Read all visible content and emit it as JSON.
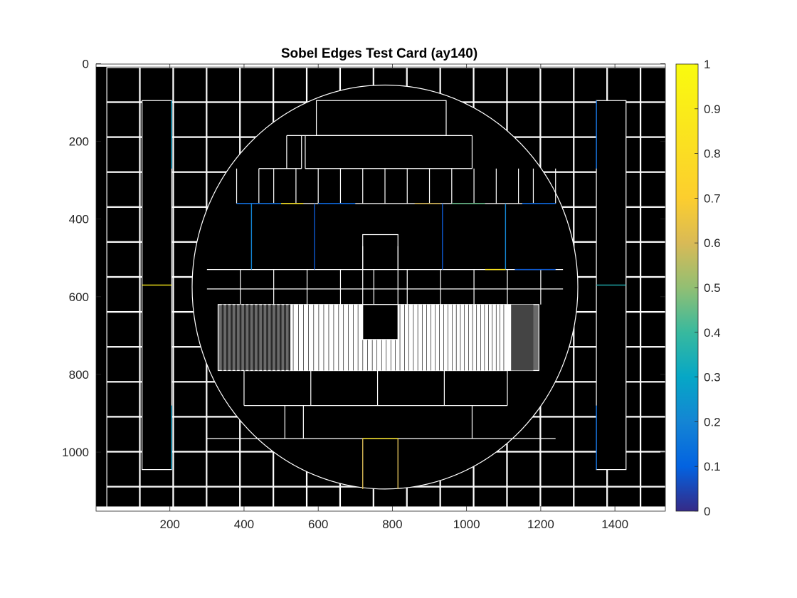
{
  "chart_data": {
    "type": "heatmap",
    "title": "Sobel Edges Test Card (ay140)",
    "xlabel": "",
    "ylabel": "",
    "image_size": {
      "columns": 1536,
      "rows": 1152
    },
    "xlim": [
      1,
      1536
    ],
    "ylim": [
      1152,
      1
    ],
    "y_direction": "reverse",
    "x_ticks": [
      200,
      400,
      600,
      800,
      1000,
      1200,
      1400
    ],
    "x_tick_labels": [
      "200",
      "400",
      "600",
      "800",
      "1000",
      "1200",
      "1400"
    ],
    "y_ticks": [
      0,
      200,
      400,
      600,
      800,
      1000
    ],
    "y_tick_labels": [
      "0",
      "200",
      "400",
      "600",
      "800",
      "1000"
    ],
    "colorbar": {
      "colormap": "parula",
      "limits": [
        0,
        1
      ],
      "ticks": [
        0,
        0.1,
        0.2,
        0.3,
        0.4,
        0.5,
        0.6,
        0.7,
        0.8,
        0.9,
        1
      ],
      "tick_labels": [
        "0",
        "0.1",
        "0.2",
        "0.3",
        "0.4",
        "0.5",
        "0.6",
        "0.7",
        "0.8",
        "0.9",
        "1"
      ]
    },
    "background_value": 0,
    "edge_value": 1,
    "grid": false,
    "circle": {
      "cx": 780,
      "cy": 575,
      "r": 520
    },
    "grid_columns_x": [
      30,
      120,
      210,
      300,
      390,
      480,
      570,
      660,
      750,
      840,
      930,
      1020,
      1110,
      1200,
      1290,
      1380,
      1470
    ],
    "grid_rows_y": [
      10,
      100,
      190,
      280,
      370,
      460,
      550,
      640,
      730,
      820,
      910,
      1000,
      1090
    ],
    "grid_cell_size": 88,
    "side_bars": [
      {
        "x0": 125,
        "x1": 205,
        "y0": 95,
        "y1": 1045
      },
      {
        "x0": 1350,
        "x1": 1430,
        "y0": 95,
        "y1": 1045
      }
    ],
    "colored_edges": [
      {
        "x0": 205,
        "x1": 205,
        "y0": 95,
        "y1": 270,
        "value": 0.28
      },
      {
        "x0": 205,
        "x1": 205,
        "y0": 880,
        "y1": 1045,
        "value": 0.28
      },
      {
        "x0": 1350,
        "x1": 1350,
        "y0": 95,
        "y1": 270,
        "value": 0.12
      },
      {
        "x0": 1350,
        "x1": 1350,
        "y0": 880,
        "y1": 1045,
        "value": 0.12
      },
      {
        "x0": 125,
        "x1": 205,
        "y0": 570,
        "y1": 570,
        "value": 0.9
      },
      {
        "x0": 1350,
        "x1": 1430,
        "y0": 570,
        "y1": 570,
        "value": 0.35
      },
      {
        "x0": 380,
        "x1": 500,
        "y0": 360,
        "y1": 360,
        "value": 0.12
      },
      {
        "x0": 500,
        "x1": 560,
        "y0": 360,
        "y1": 360,
        "value": 0.85
      },
      {
        "x0": 600,
        "x1": 700,
        "y0": 360,
        "y1": 360,
        "value": 0.1
      },
      {
        "x0": 860,
        "x1": 930,
        "y0": 360,
        "y1": 360,
        "value": 0.6
      },
      {
        "x0": 960,
        "x1": 1050,
        "y0": 360,
        "y1": 360,
        "value": 0.45
      },
      {
        "x0": 1150,
        "x1": 1240,
        "y0": 360,
        "y1": 360,
        "value": 0.1
      },
      {
        "x0": 420,
        "x1": 420,
        "y0": 360,
        "y1": 530,
        "value": 0.2
      },
      {
        "x0": 590,
        "x1": 590,
        "y0": 360,
        "y1": 530,
        "value": 0.08
      },
      {
        "x0": 935,
        "x1": 935,
        "y0": 360,
        "y1": 530,
        "value": 0.08
      },
      {
        "x0": 1105,
        "x1": 1105,
        "y0": 360,
        "y1": 530,
        "value": 0.2
      },
      {
        "x0": 1050,
        "x1": 1105,
        "y0": 530,
        "y1": 530,
        "value": 0.85
      },
      {
        "x0": 1130,
        "x1": 1240,
        "y0": 530,
        "y1": 530,
        "value": 0.08
      },
      {
        "x0": 720,
        "x1": 720,
        "y0": 965,
        "y1": 1095,
        "value": 0.6
      },
      {
        "x0": 815,
        "x1": 815,
        "y0": 965,
        "y1": 1095,
        "value": 0.6
      },
      {
        "x0": 720,
        "x1": 815,
        "y0": 965,
        "y1": 965,
        "value": 0.85
      }
    ]
  }
}
